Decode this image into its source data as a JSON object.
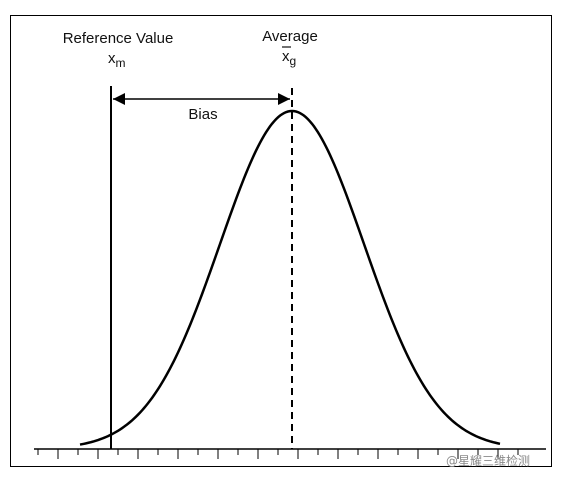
{
  "reference": {
    "label": "Reference Value",
    "symbol": "x",
    "subscript": "m"
  },
  "average": {
    "label": "Average",
    "symbol": "x",
    "subscript": "g"
  },
  "bias": {
    "label": "Bias"
  },
  "watermark": {
    "text": "@星耀三维检测"
  },
  "colors": {
    "line": "#000000",
    "watermark": "#8a8a8a"
  }
}
